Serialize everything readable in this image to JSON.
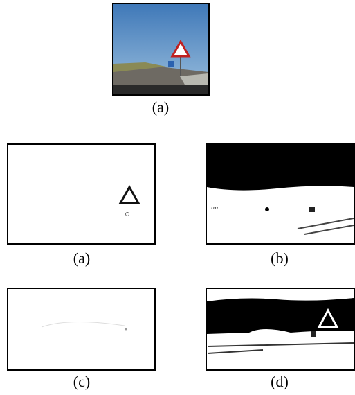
{
  "figure": {
    "top_caption": "(a)",
    "panels": [
      {
        "caption": "(a)"
      },
      {
        "caption": "(b)"
      },
      {
        "caption": "(c)"
      },
      {
        "caption": "(d)"
      }
    ]
  }
}
